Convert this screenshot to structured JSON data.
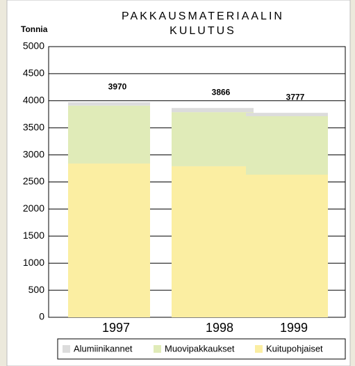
{
  "chart_data": {
    "type": "stacked_bar",
    "title": [
      "PAKKAUSMATERIAALIN",
      "KULUTUS"
    ],
    "y_label": "Tonnia",
    "categories": [
      "1997",
      "1998",
      "1999"
    ],
    "series": [
      {
        "name": "Kuitupohjaiset",
        "color": "#fbeea2",
        "values": [
          2840,
          2790,
          2635
        ]
      },
      {
        "name": "Muovipakkaukset",
        "color": "#e0ebb8",
        "values": [
          1070,
          1000,
          1080
        ]
      },
      {
        "name": "Alumiinikannet",
        "color": "#dcdcdc",
        "values": [
          60,
          76,
          62
        ]
      }
    ],
    "totals": [
      3970,
      3866,
      3777
    ],
    "ylim": [
      0,
      5000
    ],
    "yticks": [
      0,
      500,
      1000,
      1500,
      2000,
      2500,
      3000,
      3500,
      4000,
      4500,
      5000
    ],
    "grid": true
  }
}
